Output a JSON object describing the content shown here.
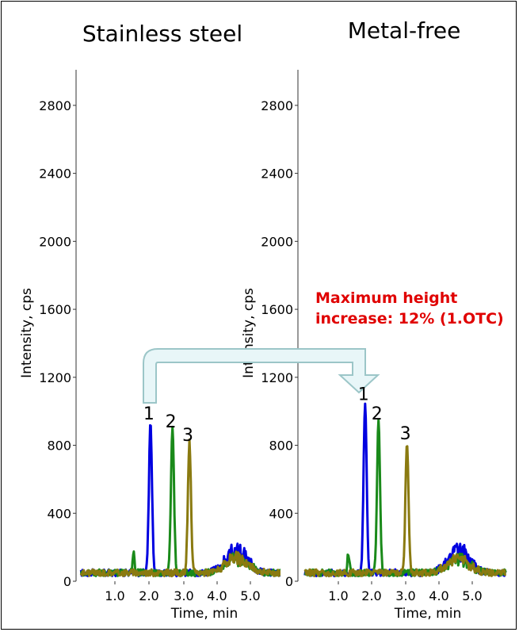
{
  "chart_data": [
    {
      "type": "line",
      "title": "Stainless steel",
      "xlabel": "Time, min",
      "ylabel": "Intensity, cps",
      "xlim": [
        0,
        6
      ],
      "ylim": [
        0,
        3000
      ],
      "xticks": [
        "1.0",
        "2.0",
        "3.0",
        "4.0",
        "5.0"
      ],
      "yticks": [
        "0",
        "400",
        "800",
        "1200",
        "1600",
        "2000",
        "2400",
        "2800"
      ],
      "series": [
        {
          "color": "#0000e0",
          "peak_time": 2.05,
          "peak_height": 895
        },
        {
          "color": "#1a8a1a",
          "peak_time": 2.7,
          "peak_height": 850
        },
        {
          "color": "#8a7a10",
          "peak_time": 3.2,
          "peak_height": 770
        }
      ],
      "peak_labels": [
        "1",
        "2",
        "3"
      ]
    },
    {
      "type": "line",
      "title": "Metal-free",
      "xlabel": "Time, min",
      "ylabel": "Intensity, cps",
      "xlim": [
        0,
        6
      ],
      "ylim": [
        0,
        3000
      ],
      "xticks": [
        "1.0",
        "2.0",
        "3.0",
        "4.0",
        "5.0"
      ],
      "yticks": [
        "0",
        "400",
        "800",
        "1200",
        "1600",
        "2000",
        "2400",
        "2800"
      ],
      "series": [
        {
          "color": "#0000e0",
          "peak_time": 1.8,
          "peak_height": 1010
        },
        {
          "color": "#1a8a1a",
          "peak_time": 2.2,
          "peak_height": 895
        },
        {
          "color": "#8a7a10",
          "peak_time": 3.05,
          "peak_height": 780
        }
      ],
      "peak_labels": [
        "1",
        "2",
        "3"
      ]
    }
  ],
  "annotation": {
    "line1": "Maximum height",
    "line2": "increase: 12% (1.OTC)",
    "color": "#e00000"
  },
  "arrow_color": "#9cc6c8",
  "arrow_fill": "#e8f6f8"
}
